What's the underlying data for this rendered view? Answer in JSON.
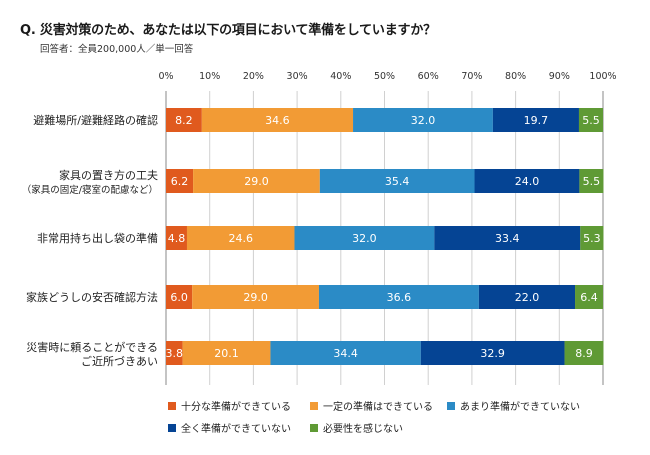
{
  "header": {
    "title": "Q. 災害対策のため、あなたは以下の項目において準備をしていますか？",
    "subtitle": "回答者：全員200,000人／単一回答"
  },
  "chart_data": {
    "type": "bar",
    "orientation": "horizontal",
    "stacked": true,
    "title": "Q. 災害対策のため、あなたは以下の項目において準備をしていますか？",
    "subtitle": "回答者：全員200,000人／単一回答",
    "xlabel": "",
    "ylabel": "",
    "xlim": [
      0,
      100
    ],
    "x_ticks": [
      "0%",
      "10%",
      "20%",
      "30%",
      "40%",
      "50%",
      "60%",
      "70%",
      "80%",
      "90%",
      "100%"
    ],
    "grid": true,
    "legend_position": "bottom",
    "categories": [
      {
        "label": "避難場所/避難経路の確認",
        "sublabel": ""
      },
      {
        "label": "家具の置き方の工夫",
        "sublabel": "（家具の固定/寝室の配慮など）"
      },
      {
        "label": "非常用持ち出し袋の準備",
        "sublabel": ""
      },
      {
        "label": "家族どうしの安否確認方法",
        "sublabel": ""
      },
      {
        "label": "災害時に頼ることができる",
        "sublabel": "ご近所づきあい"
      }
    ],
    "series": [
      {
        "name": "十分な準備ができている",
        "color": "#e05a1e",
        "values": [
          8.2,
          6.2,
          4.8,
          6.0,
          3.8
        ]
      },
      {
        "name": "一定の準備はできている",
        "color": "#f29b35",
        "values": [
          34.6,
          29.0,
          24.6,
          29.0,
          20.1
        ]
      },
      {
        "name": "あまり準備ができていない",
        "color": "#2b8bc6",
        "values": [
          32.0,
          35.4,
          32.0,
          36.6,
          34.4
        ]
      },
      {
        "name": "全く準備ができていない",
        "color": "#054494",
        "values": [
          19.7,
          24.0,
          33.4,
          22.0,
          32.9
        ]
      },
      {
        "name": "必要性を感じない",
        "color": "#5f9a35",
        "values": [
          5.5,
          5.5,
          5.3,
          6.4,
          8.9
        ]
      }
    ]
  }
}
